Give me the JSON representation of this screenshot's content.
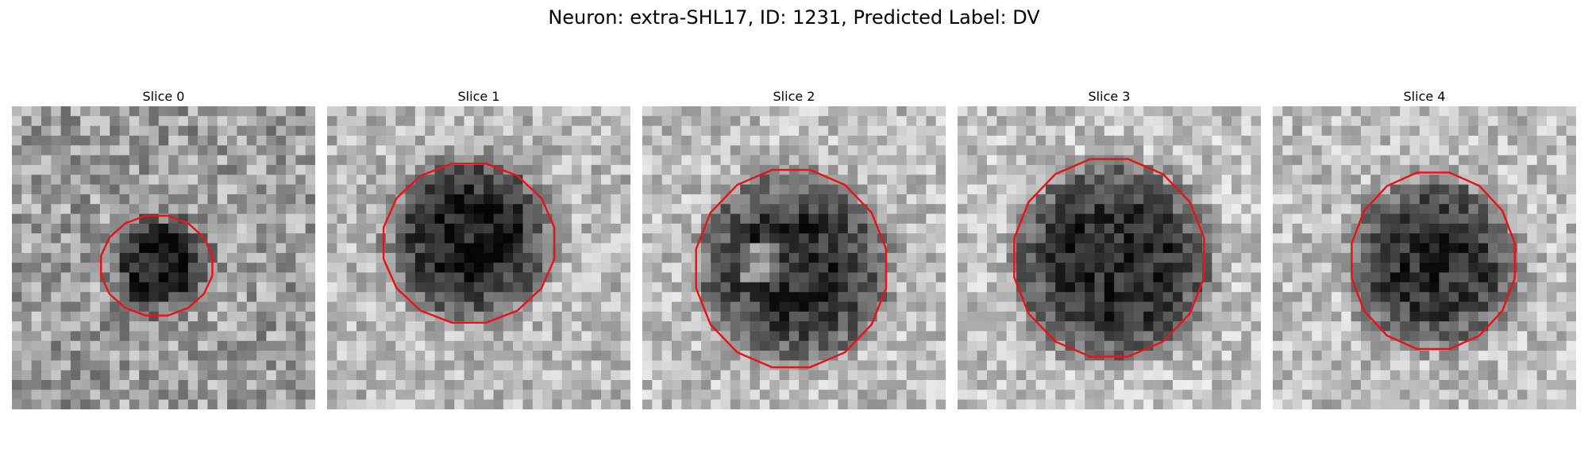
{
  "figure": {
    "title": "Neuron: extra-SHL17, ID: 1231, Predicted Label: DV",
    "contour_color": "#e8141b",
    "slices": [
      {
        "label": "Slice 0"
      },
      {
        "label": "Slice 1"
      },
      {
        "label": "Slice 2"
      },
      {
        "label": "Slice 3"
      },
      {
        "label": "Slice 4"
      }
    ]
  }
}
